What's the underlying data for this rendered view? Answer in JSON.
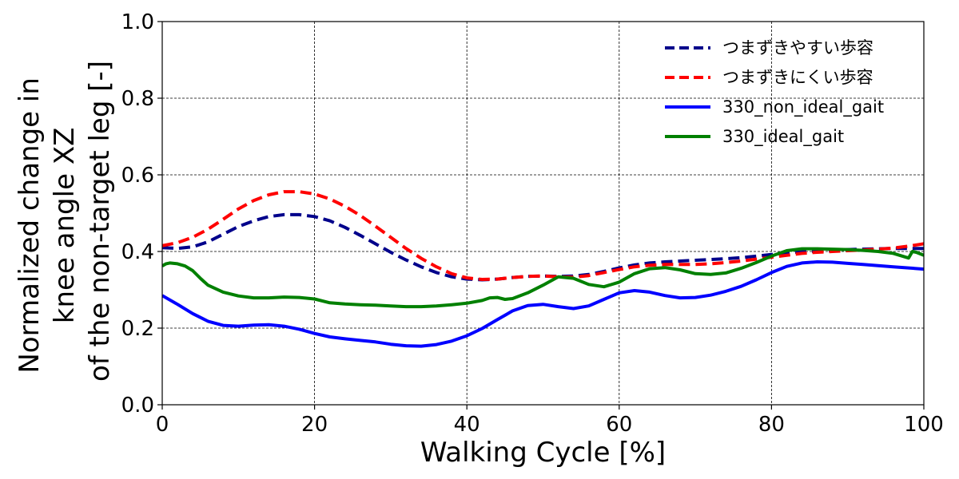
{
  "chart_data": {
    "type": "line",
    "title": "",
    "xlabel": "Walking Cycle [%]",
    "ylabel_lines": [
      "Normalized change in",
      "knee angle XZ",
      "of the non-target leg [-]"
    ],
    "xlim": [
      0,
      100
    ],
    "ylim": [
      0.0,
      1.0
    ],
    "xticks": [
      0,
      20,
      40,
      60,
      80,
      100
    ],
    "xtick_labels": [
      "0",
      "20",
      "40",
      "60",
      "80",
      "100"
    ],
    "yticks": [
      0.0,
      0.2,
      0.4,
      0.6,
      0.8,
      1.0
    ],
    "ytick_labels": [
      "0.0",
      "0.2",
      "0.4",
      "0.6",
      "0.8",
      "1.0"
    ],
    "grid": true,
    "legend_position": "top-right",
    "series": [
      {
        "name": "つまずきやすい歩容",
        "color": "#00008b",
        "style": "dashed",
        "x": [
          0,
          2,
          4,
          6,
          8,
          10,
          12,
          14,
          16,
          18,
          20,
          22,
          24,
          26,
          28,
          30,
          32,
          34,
          36,
          38,
          40,
          42,
          44,
          46,
          48,
          50,
          52,
          54,
          56,
          58,
          60,
          62,
          64,
          66,
          68,
          70,
          72,
          74,
          76,
          78,
          80,
          82,
          84,
          86,
          88,
          90,
          92,
          94,
          96,
          98,
          100
        ],
        "y": [
          0.41,
          0.408,
          0.412,
          0.425,
          0.445,
          0.465,
          0.48,
          0.491,
          0.496,
          0.496,
          0.491,
          0.48,
          0.463,
          0.442,
          0.42,
          0.398,
          0.378,
          0.36,
          0.345,
          0.334,
          0.328,
          0.326,
          0.328,
          0.332,
          0.335,
          0.336,
          0.335,
          0.336,
          0.34,
          0.348,
          0.357,
          0.365,
          0.37,
          0.373,
          0.375,
          0.377,
          0.379,
          0.381,
          0.384,
          0.388,
          0.392,
          0.396,
          0.399,
          0.401,
          0.403,
          0.405,
          0.406,
          0.407,
          0.408,
          0.408,
          0.408
        ]
      },
      {
        "name": "つまずきにくい歩容",
        "color": "#ff0000",
        "style": "dashed",
        "x": [
          0,
          2,
          4,
          6,
          8,
          10,
          12,
          14,
          16,
          18,
          20,
          22,
          24,
          26,
          28,
          30,
          32,
          34,
          36,
          38,
          40,
          42,
          44,
          46,
          48,
          50,
          52,
          54,
          56,
          58,
          60,
          62,
          64,
          66,
          68,
          70,
          72,
          74,
          76,
          78,
          80,
          82,
          84,
          86,
          88,
          90,
          92,
          94,
          96,
          98,
          100
        ],
        "y": [
          0.415,
          0.423,
          0.437,
          0.458,
          0.484,
          0.511,
          0.533,
          0.548,
          0.556,
          0.556,
          0.55,
          0.537,
          0.518,
          0.494,
          0.466,
          0.437,
          0.408,
          0.382,
          0.36,
          0.342,
          0.331,
          0.327,
          0.328,
          0.332,
          0.335,
          0.336,
          0.334,
          0.333,
          0.337,
          0.345,
          0.353,
          0.36,
          0.364,
          0.366,
          0.366,
          0.366,
          0.368,
          0.371,
          0.375,
          0.38,
          0.385,
          0.39,
          0.395,
          0.398,
          0.4,
          0.402,
          0.404,
          0.406,
          0.409,
          0.414,
          0.42
        ]
      },
      {
        "name": "330_non_ideal_gait",
        "color": "#0000ff",
        "style": "solid",
        "x": [
          0,
          2,
          4,
          6,
          8,
          10,
          12,
          14,
          16,
          18,
          20,
          22,
          24,
          26,
          28,
          30,
          32,
          34,
          36,
          38,
          40,
          42,
          44,
          46,
          48,
          50,
          52,
          54,
          56,
          58,
          60,
          62,
          64,
          66,
          68,
          70,
          72,
          74,
          76,
          78,
          80,
          82,
          84,
          86,
          88,
          90,
          92,
          94,
          96,
          98,
          100
        ],
        "y": [
          0.285,
          0.262,
          0.238,
          0.218,
          0.207,
          0.205,
          0.208,
          0.209,
          0.205,
          0.197,
          0.186,
          0.177,
          0.172,
          0.168,
          0.164,
          0.158,
          0.154,
          0.153,
          0.157,
          0.166,
          0.18,
          0.199,
          0.222,
          0.245,
          0.259,
          0.262,
          0.256,
          0.251,
          0.258,
          0.275,
          0.292,
          0.298,
          0.294,
          0.285,
          0.279,
          0.28,
          0.286,
          0.296,
          0.309,
          0.326,
          0.345,
          0.361,
          0.37,
          0.373,
          0.372,
          0.369,
          0.366,
          0.363,
          0.36,
          0.357,
          0.354
        ]
      },
      {
        "name": "330_ideal_gait",
        "color": "#008000",
        "style": "solid",
        "x": [
          0,
          0.5,
          1,
          2,
          3,
          4,
          5,
          6,
          8,
          10,
          12,
          14,
          16,
          18,
          20,
          22,
          24,
          26,
          28,
          30,
          32,
          34,
          36,
          38,
          40,
          42,
          43,
          44,
          45,
          46,
          48,
          50,
          52,
          54,
          56,
          58,
          60,
          62,
          64,
          66,
          68,
          70,
          72,
          74,
          76,
          78,
          80,
          82,
          84,
          86,
          88,
          90,
          92,
          94,
          96,
          98,
          98.5,
          99,
          100
        ],
        "y": [
          0.362,
          0.368,
          0.37,
          0.368,
          0.362,
          0.35,
          0.33,
          0.312,
          0.294,
          0.284,
          0.279,
          0.279,
          0.281,
          0.28,
          0.276,
          0.266,
          0.263,
          0.261,
          0.26,
          0.258,
          0.256,
          0.256,
          0.258,
          0.261,
          0.265,
          0.272,
          0.279,
          0.28,
          0.275,
          0.277,
          0.292,
          0.312,
          0.334,
          0.33,
          0.314,
          0.308,
          0.32,
          0.342,
          0.355,
          0.358,
          0.352,
          0.342,
          0.34,
          0.344,
          0.356,
          0.371,
          0.388,
          0.402,
          0.407,
          0.407,
          0.406,
          0.405,
          0.403,
          0.4,
          0.395,
          0.383,
          0.4,
          0.398,
          0.39
        ]
      }
    ]
  }
}
